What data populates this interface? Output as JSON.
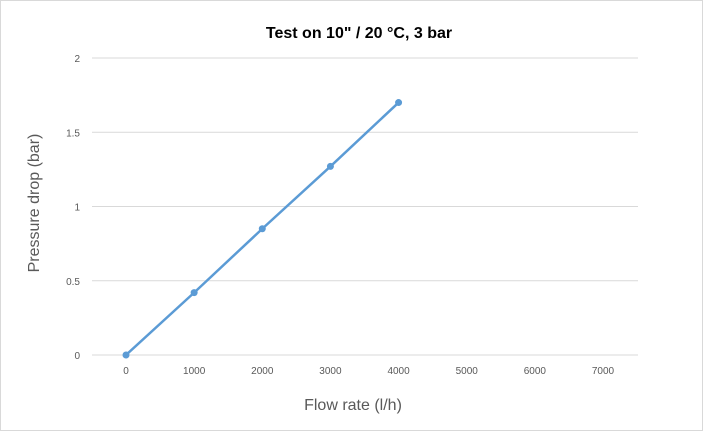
{
  "chart_data": {
    "type": "line",
    "title": "Test on 10\" / 20 °C, 3 bar",
    "xlabel": "Flow rate (l/h)",
    "ylabel": "Pressure drop (bar)",
    "x_ticks": [
      "0",
      "1000",
      "2000",
      "3000",
      "4000",
      "5000",
      "6000",
      "7000"
    ],
    "y_ticks": [
      "0",
      "0.5",
      "1",
      "1.5",
      "2"
    ],
    "xlim": [
      0,
      7000
    ],
    "ylim": [
      0,
      2
    ],
    "grid": "horizontal",
    "series": [
      {
        "color": "#5b9bd5",
        "x": [
          0,
          1000,
          2000,
          3000,
          4000
        ],
        "y": [
          0,
          0.42,
          0.85,
          1.27,
          1.7
        ]
      }
    ]
  }
}
